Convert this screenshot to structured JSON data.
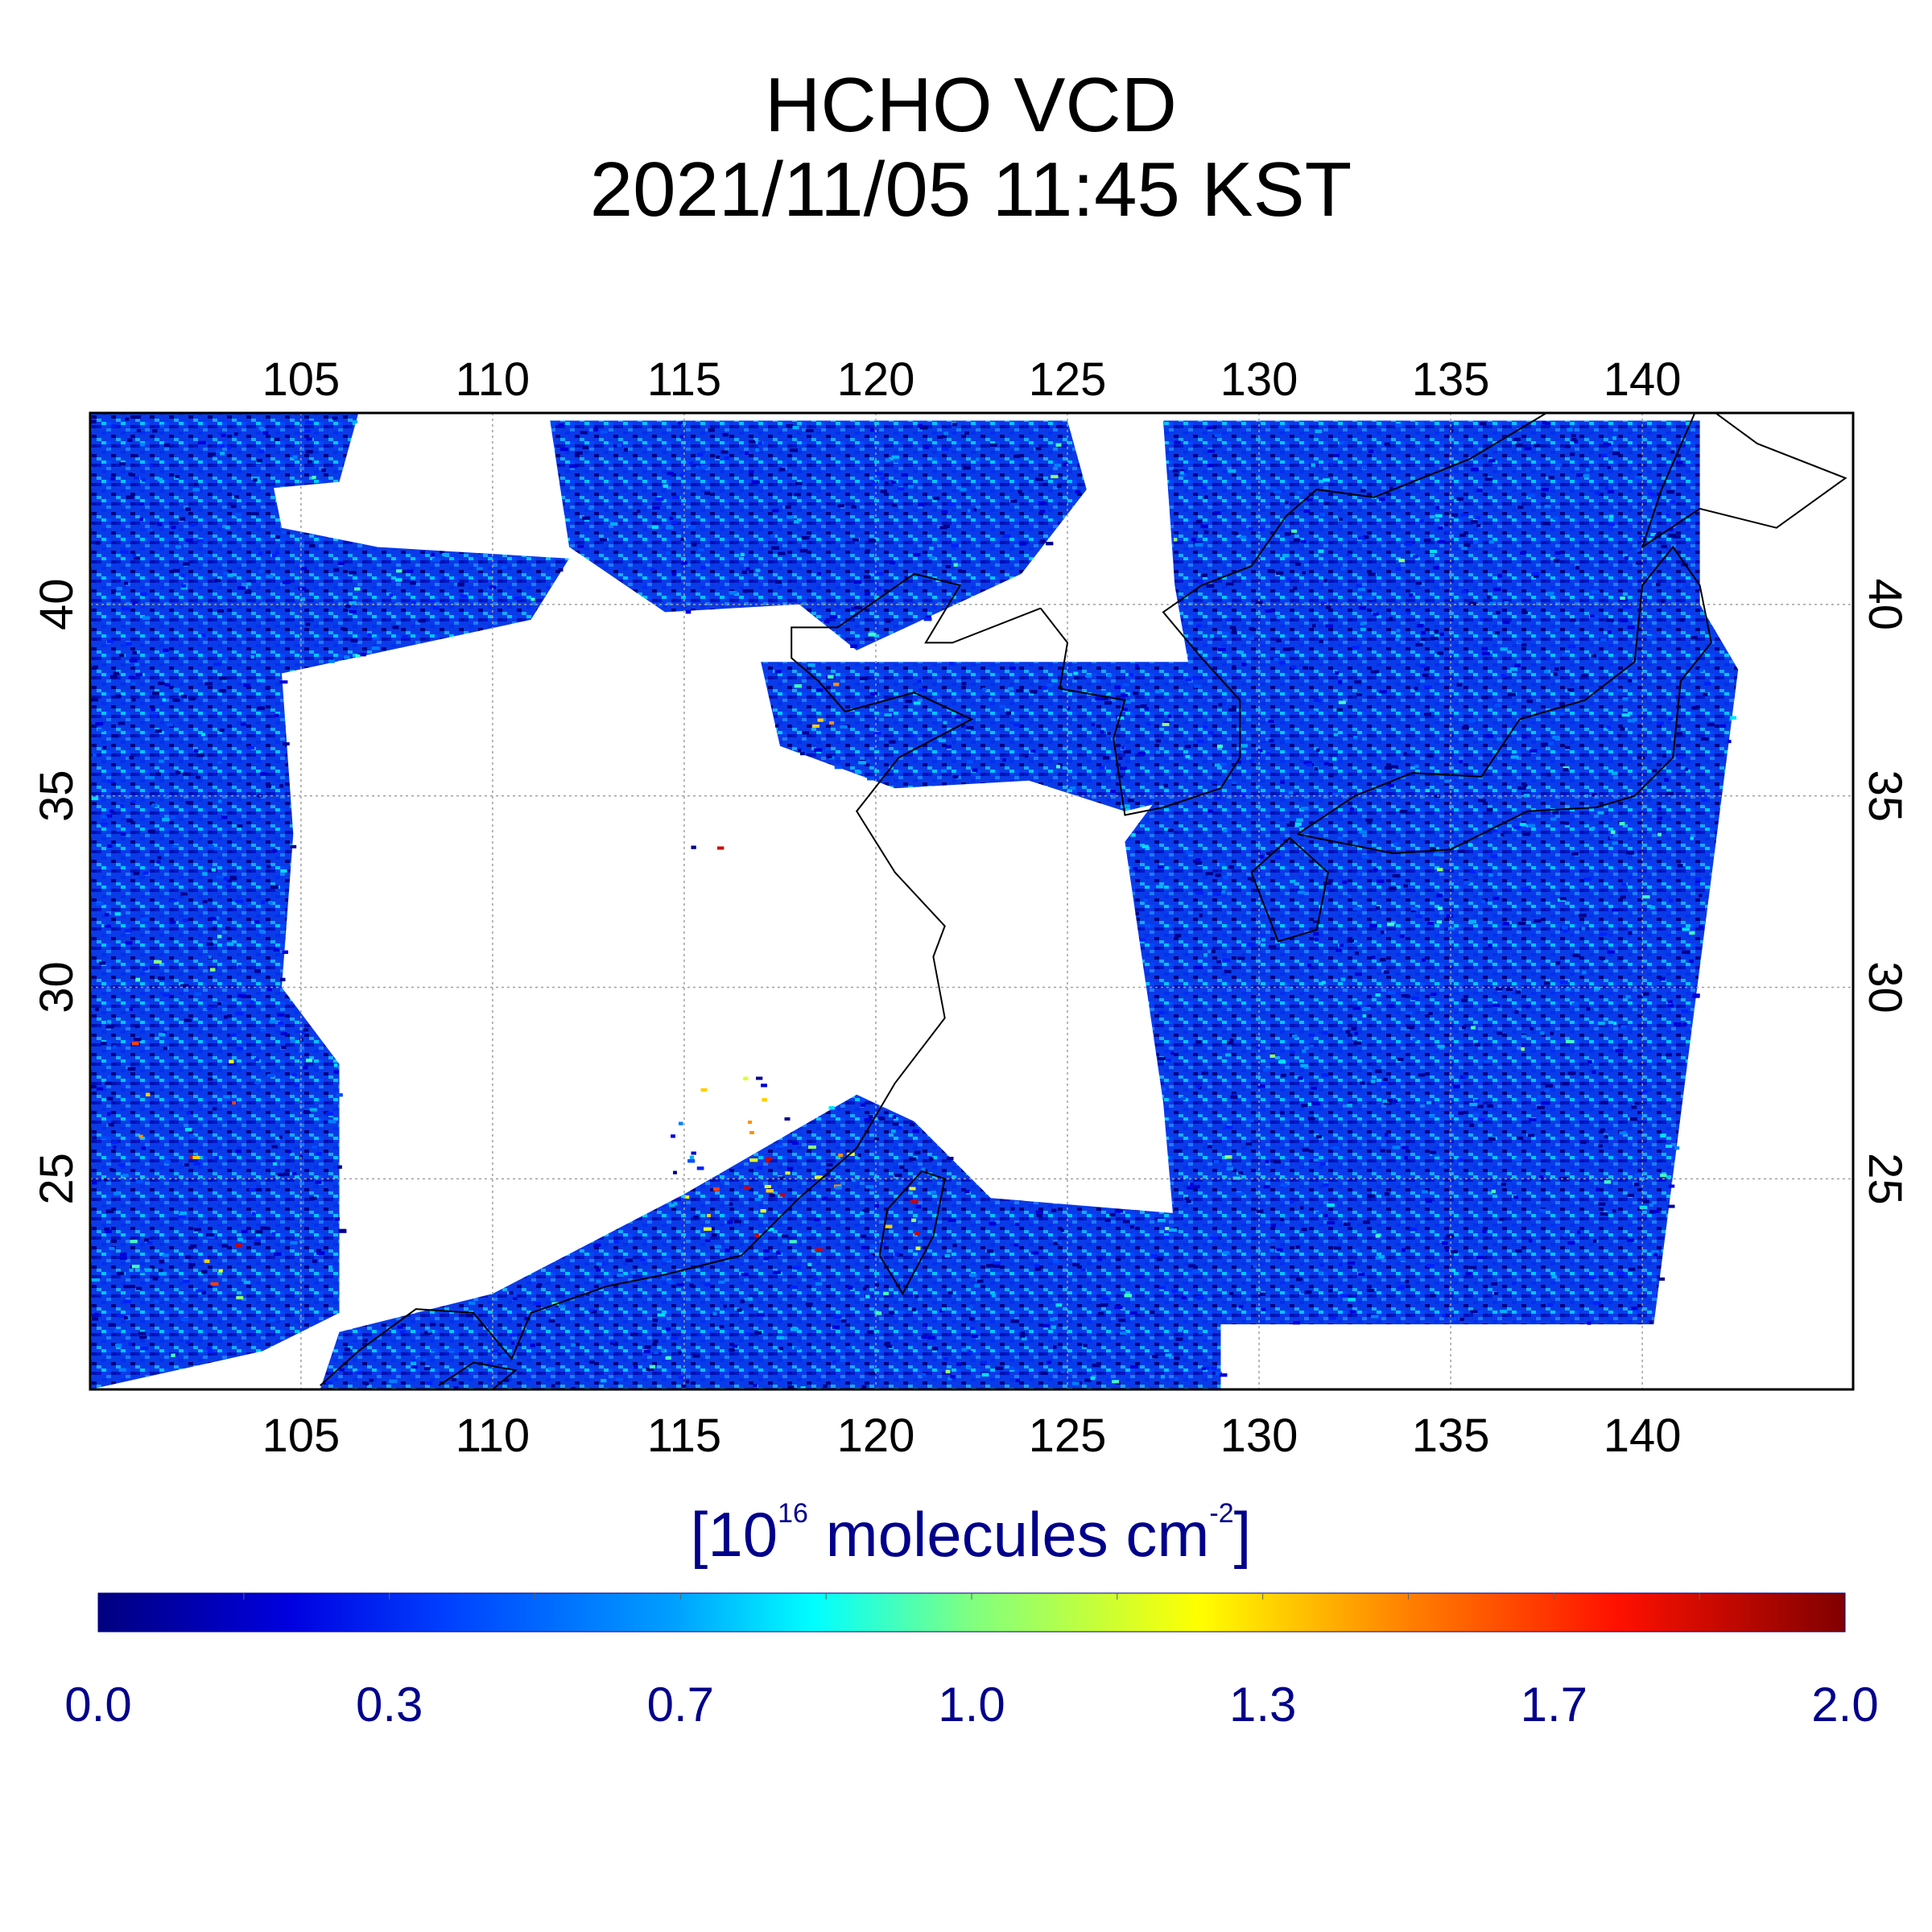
{
  "title": {
    "line1": "HCHO VCD",
    "line2": "2021/11/05 11:45 KST"
  },
  "map": {
    "lon_ticks": [
      "105",
      "110",
      "115",
      "120",
      "125",
      "130",
      "135",
      "140"
    ],
    "lat_ticks": [
      "40",
      "35",
      "30",
      "25"
    ],
    "lon_values": [
      105,
      110,
      115,
      120,
      125,
      130,
      135,
      140
    ],
    "lat_values": [
      40,
      35,
      30,
      25
    ],
    "lon_range": [
      99.5,
      145.5
    ],
    "lat_range": [
      19.5,
      45
    ],
    "field_palette": [
      "#00008f",
      "#0000d9",
      "#0020ff",
      "#0050ff",
      "#0080ff",
      "#00b0ff",
      "#00e0ff",
      "#40ffc0",
      "#90ff70",
      "#e0ff20",
      "#ffd000",
      "#ff9000",
      "#ff4000",
      "#d00000"
    ]
  },
  "colorbar": {
    "unit_open": "[10",
    "unit_exp": "16",
    "unit_mid": " molecules cm",
    "unit_exp2": "-2",
    "unit_close": "]",
    "ticks": [
      "0.0",
      "0.3",
      "0.7",
      "1.0",
      "1.3",
      "1.7",
      "2.0"
    ],
    "range": [
      0.0,
      2.0
    ],
    "colors": [
      "#00007f",
      "#0000ff",
      "#007fff",
      "#00ffff",
      "#7fff7f",
      "#ffff00",
      "#ff7f00",
      "#ff0000",
      "#7f0000"
    ]
  }
}
